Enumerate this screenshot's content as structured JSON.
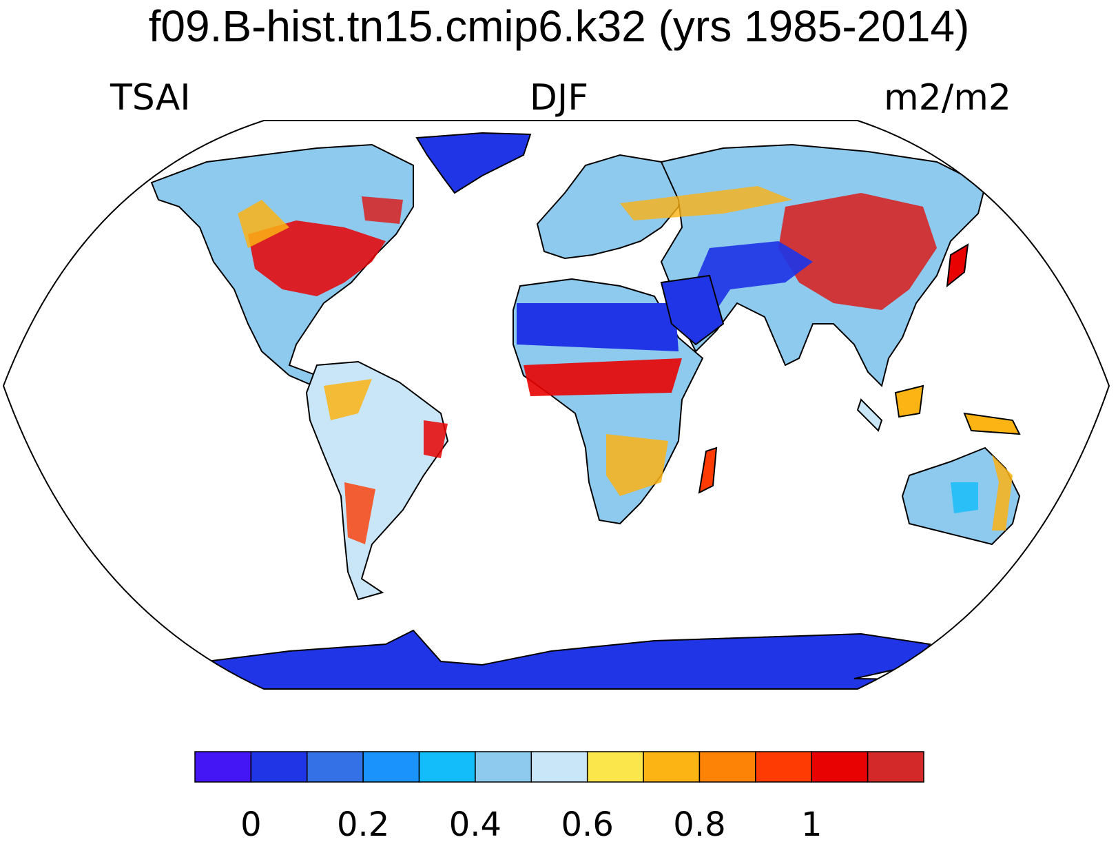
{
  "title": "f09.B-hist.tn15.cmip6.k32 (yrs 1985-2014)",
  "left_label": "TSAI",
  "center_label": "DJF",
  "right_label": "m2/m2",
  "colorbar": {
    "colors": [
      "#4415f5",
      "#1f35e6",
      "#3471e6",
      "#1a94fc",
      "#13bdfa",
      "#8ec9ee",
      "#c8e6f8",
      "#fbe74b",
      "#fcb314",
      "#fd8306",
      "#fd3b02",
      "#e80202",
      "#d42929"
    ],
    "tick_labels": [
      "0",
      "0.2",
      "0.4",
      "0.6",
      "0.8",
      "1"
    ]
  },
  "map_palette": {
    "ocean": "#ffffff",
    "coast": "#000000",
    "desert": "#1f35e6",
    "steppe": "#8ec9ee",
    "light": "#c8e6f8",
    "warm": "#fcb314",
    "hot": "#e80202",
    "mid": "#13bdfa"
  }
}
